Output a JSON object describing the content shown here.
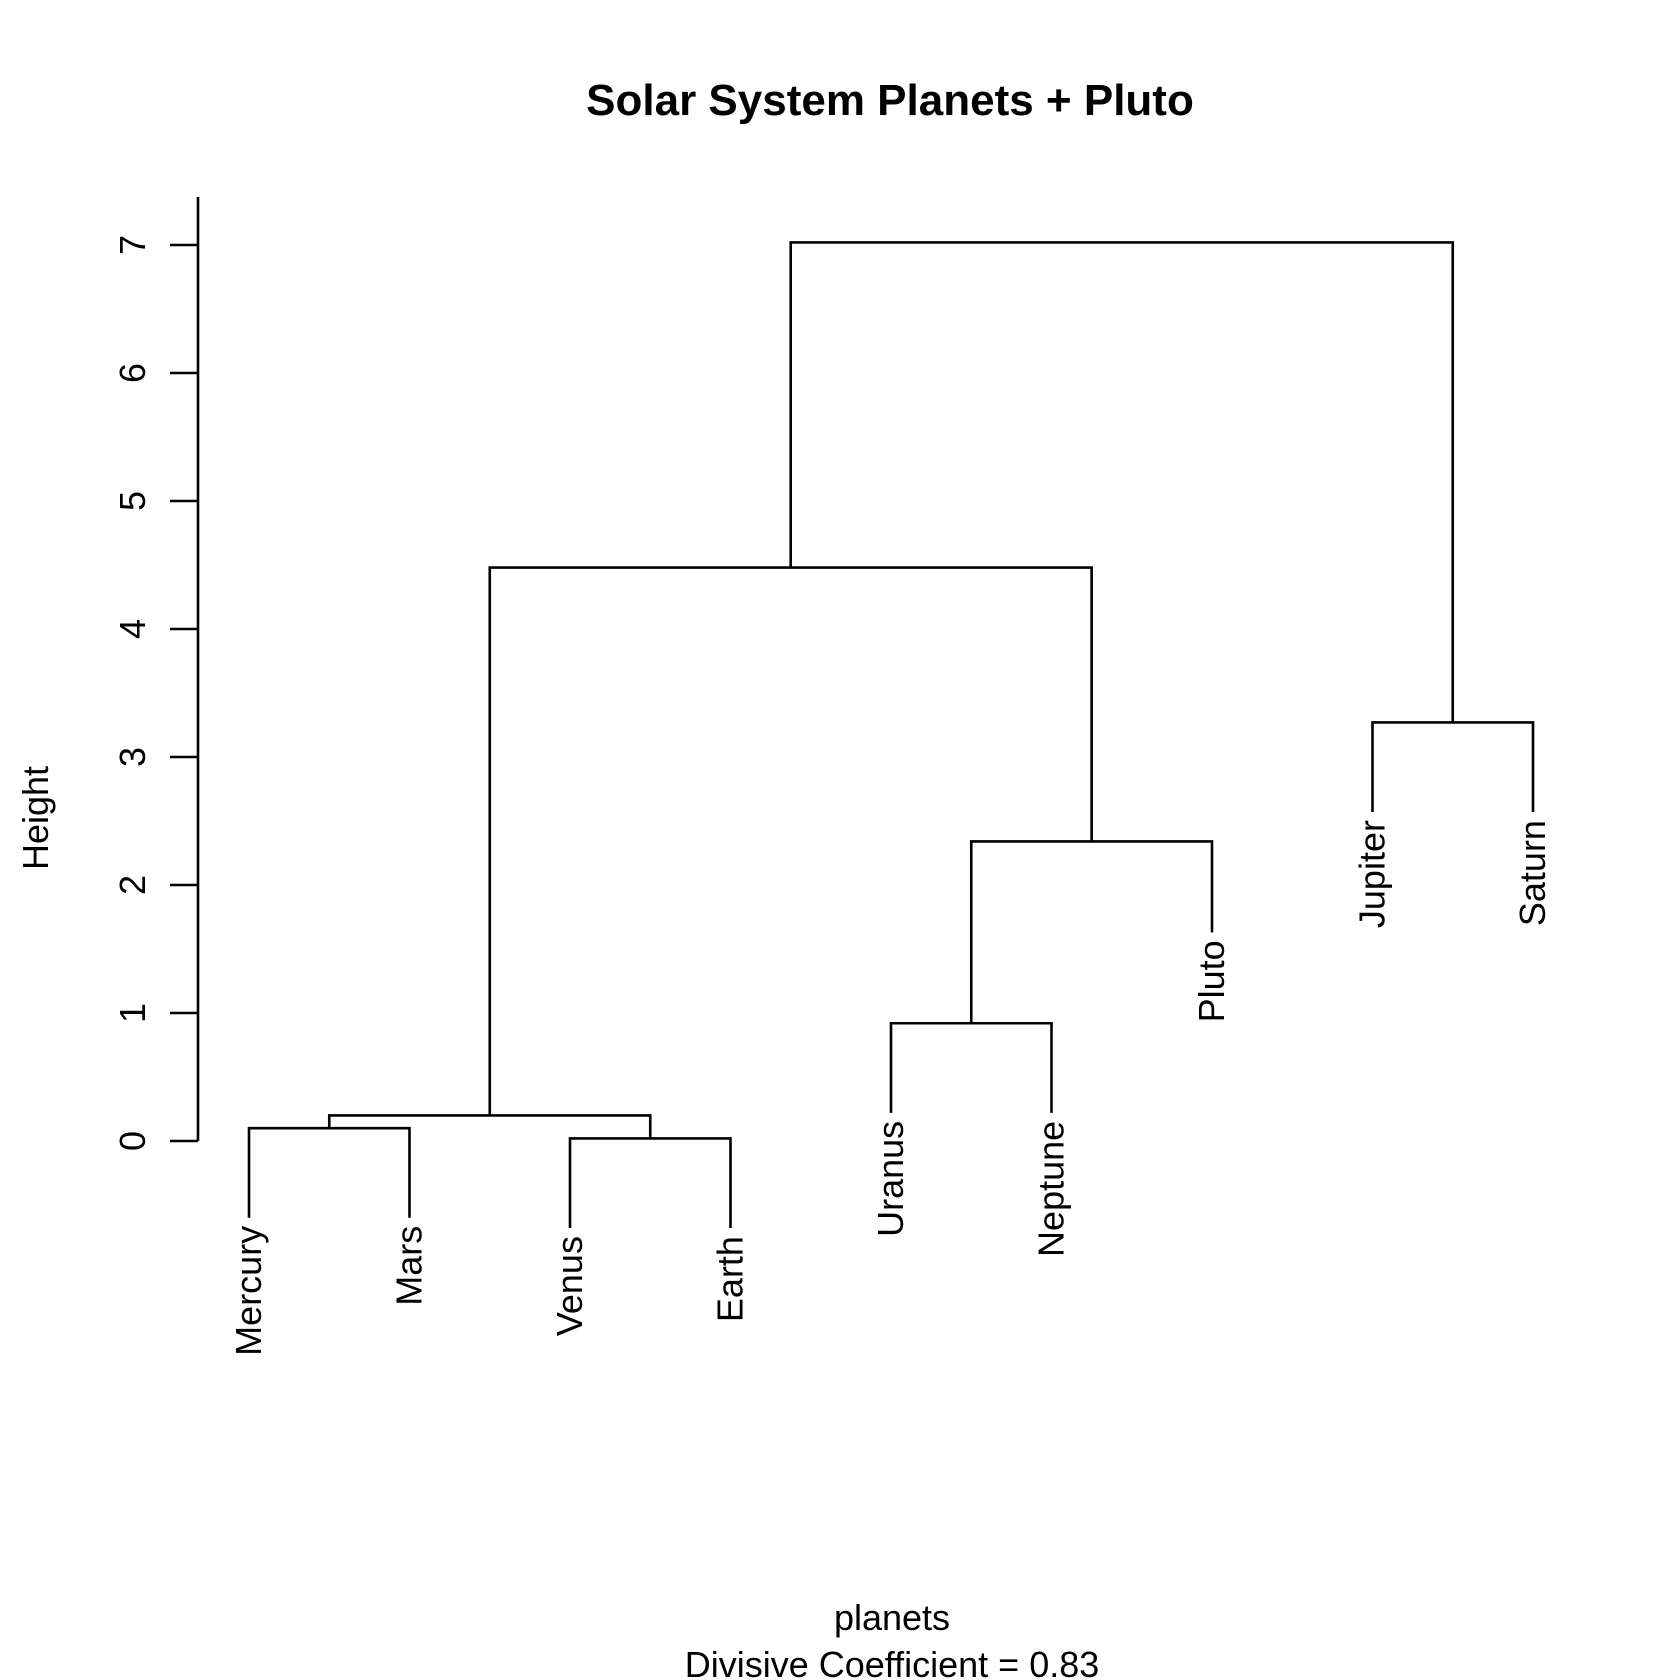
{
  "chart_data": {
    "type": "dendrogram",
    "title": "Solar System Planets + Pluto",
    "xlabel": "planets",
    "ylabel": "Height",
    "sublabel": "Divisive Coefficient =  0.83",
    "ylim": [
      0,
      7
    ],
    "yticks": [
      "0",
      "1",
      "2",
      "3",
      "4",
      "5",
      "6",
      "7"
    ],
    "leaves": [
      {
        "name": "Mercury",
        "label_height": -0.6
      },
      {
        "name": "Mars",
        "label_height": -0.6
      },
      {
        "name": "Venus",
        "label_height": -0.68
      },
      {
        "name": "Earth",
        "label_height": -0.68
      },
      {
        "name": "Uranus",
        "label_height": 0.22
      },
      {
        "name": "Neptune",
        "label_height": 0.22
      },
      {
        "name": "Pluto",
        "label_height": 1.63
      },
      {
        "name": "Jupiter",
        "label_height": 2.57
      },
      {
        "name": "Saturn",
        "label_height": 2.57
      }
    ],
    "merges": [
      {
        "left": "Mercury",
        "right": "Mars",
        "height": 0.1
      },
      {
        "left": "Venus",
        "right": "Earth",
        "height": 0.02
      },
      {
        "left": "m1",
        "right": "m2",
        "height": 0.2
      },
      {
        "left": "Uranus",
        "right": "Neptune",
        "height": 0.92
      },
      {
        "left": "m4",
        "right": "Pluto",
        "height": 2.34
      },
      {
        "left": "m3",
        "right": "m5",
        "height": 4.48
      },
      {
        "left": "Jupiter",
        "right": "Saturn",
        "height": 3.27
      },
      {
        "left": "m6",
        "right": "m7",
        "height": 7.02
      }
    ]
  }
}
